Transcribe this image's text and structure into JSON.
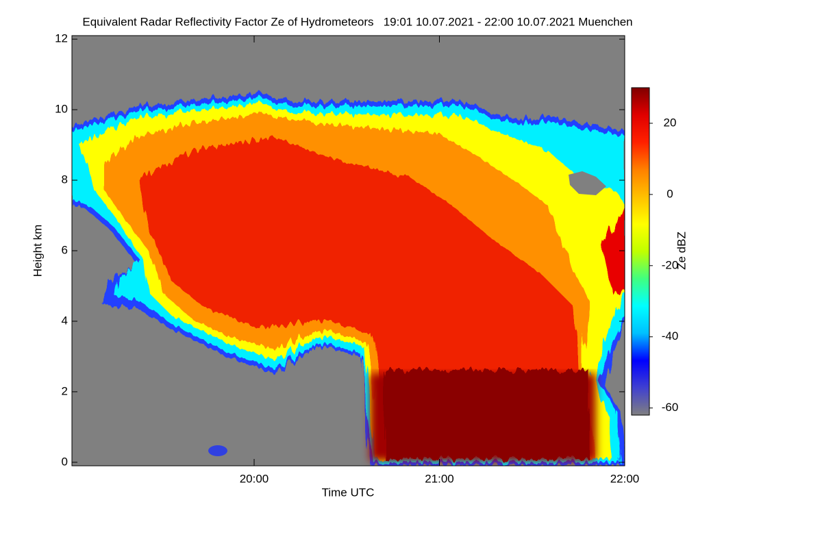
{
  "chart_data": {
    "type": "heatmap",
    "title": "Equivalent Radar Reflectivity Factor Ze of Hydrometeors   19:01 10.07.2021 - 22:00 10.07.2021 Muenchen",
    "x_label": "Time UTC",
    "y_label": "Height km",
    "colorbar_label": "Ze dBZ",
    "xlim": [
      19.0167,
      22.0
    ],
    "xticks": [
      {
        "value": 20,
        "label": "20:00"
      },
      {
        "value": 21,
        "label": "21:00"
      },
      {
        "value": 22,
        "label": "22:00"
      }
    ],
    "ylim": [
      -0.1,
      12.1
    ],
    "yticks": [
      0,
      2,
      4,
      6,
      8,
      10,
      12
    ],
    "clim": [
      -62,
      30
    ],
    "cticks": [
      -60,
      -40,
      -20,
      0,
      20
    ],
    "colormap": [
      "#808080",
      "#4040d0",
      "#0000ff",
      "#00c0ff",
      "#00ffff",
      "#40ff80",
      "#c0ff00",
      "#ffff00",
      "#ffc000",
      "#ff8000",
      "#ff2000",
      "#e00000",
      "#800000"
    ],
    "background": "#808080"
  }
}
